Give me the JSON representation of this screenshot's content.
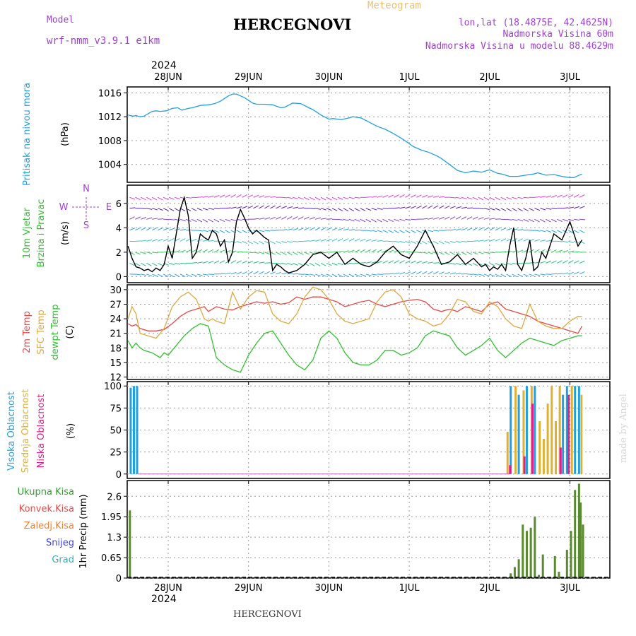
{
  "header": {
    "model_label": "Model",
    "model_name": "wrf-nmm_v3.9.1 e1km",
    "title": "HERCEGNOVI",
    "meteogram_label": "Meteogram",
    "lonlat": "lon,lat (18.4875E, 42.4625N)",
    "altitude": "Nadmorska Visina 60m",
    "model_altitude": "Nadmorska Visina u modelu 88.4629m",
    "top_year": "2024",
    "bottom_year": "2024",
    "footer": "HERCEGNOVI",
    "credit": "made by Angel",
    "colors": {
      "model": "#a040d0",
      "title": "#000000",
      "meteogram": "#f0c070"
    }
  },
  "dates": [
    "28JUN",
    "29JUN",
    "30JUN",
    "1JUL",
    "2JUL",
    "3JUL"
  ],
  "chart_data": [
    {
      "type": "line",
      "id": "pressure",
      "ylabel_lines": [
        "Pritisak na nivou mora",
        "(hPa)"
      ],
      "ylim": [
        1001,
        1017
      ],
      "yticks": [
        "1004",
        "1008",
        "1012",
        "1016"
      ],
      "ytick_values": [
        1004,
        1008,
        1012,
        1016
      ],
      "grid": true,
      "series": [
        {
          "color": "#20a0e0",
          "x": [
            0,
            0.06,
            0.1,
            0.15,
            0.2,
            0.3,
            0.35,
            0.4,
            0.48,
            0.55,
            0.62,
            0.67,
            0.75,
            0.8,
            0.9,
            1.0,
            1.08,
            1.15,
            1.25,
            1.3,
            1.35,
            1.45,
            1.55,
            1.6,
            1.7,
            1.8,
            1.9,
            1.95,
            2.05,
            2.15,
            2.25,
            2.3,
            2.4,
            2.5,
            2.55,
            2.65,
            2.75,
            2.8,
            2.9,
            3.0,
            3.1,
            3.2,
            3.3,
            3.4,
            3.5,
            3.55,
            3.65,
            3.75,
            3.85,
            3.9,
            4.0,
            4.1,
            4.2,
            4.3,
            4.4,
            4.5,
            4.6,
            4.65,
            4.75,
            4.85,
            4.95,
            5.05,
            5.1,
            5.2,
            5.3,
            5.4,
            5.5,
            5.55,
            5.6,
            5.65
          ],
          "values": [
            1012.3,
            1012.1,
            1012.2,
            1012.0,
            1012.1,
            1012.9,
            1013.0,
            1012.9,
            1013.0,
            1013.4,
            1013.5,
            1013.1,
            1013.4,
            1013.5,
            1013.9,
            1014.0,
            1014.2,
            1014.6,
            1015.5,
            1015.8,
            1015.8,
            1015.2,
            1014.3,
            1014.1,
            1014.1,
            1014.0,
            1013.5,
            1013.6,
            1014.3,
            1014.2,
            1013.5,
            1013.2,
            1012.3,
            1011.6,
            1011.7,
            1011.5,
            1011.8,
            1012.0,
            1011.8,
            1011.1,
            1010.4,
            1009.9,
            1009.2,
            1008.4,
            1007.5,
            1007.0,
            1006.4,
            1006.0,
            1005.4,
            1005.0,
            1004.0,
            1003.0,
            1002.6,
            1002.9,
            1002.7,
            1003.1,
            1002.5,
            1002.4,
            1002.0,
            1002.0,
            1002.2,
            1002.4,
            1002.6,
            1002.2,
            1002.3,
            1002.0,
            1001.8,
            1001.8,
            1002.1,
            1002.4
          ]
        }
      ]
    },
    {
      "type": "line",
      "id": "wind",
      "ylabel_lines": [
        "10m Vjetar",
        "Brzina i Pravac",
        "(m/s)"
      ],
      "compass": {
        "n": "N",
        "w": "W",
        "e": "E",
        "s": "S"
      },
      "ylim": [
        -0.5,
        7.5
      ],
      "yticks": [
        "0",
        "2",
        "4",
        "6"
      ],
      "ytick_values": [
        0,
        2,
        4,
        6
      ],
      "grid": true,
      "series": [
        {
          "name": "",
          "color": "#000000",
          "x": [
            0,
            0.05,
            0.1,
            0.15,
            0.2,
            0.25,
            0.3,
            0.35,
            0.4,
            0.45,
            0.5,
            0.55,
            0.6,
            0.65,
            0.7,
            0.75,
            0.8,
            0.85,
            0.9,
            0.95,
            1.0,
            1.05,
            1.1,
            1.15,
            1.2,
            1.25,
            1.3,
            1.35,
            1.4,
            1.45,
            1.5,
            1.55,
            1.6,
            1.65,
            1.7,
            1.75,
            1.8,
            1.85,
            1.9,
            1.95,
            2.0,
            2.1,
            2.2,
            2.3,
            2.4,
            2.5,
            2.6,
            2.7,
            2.8,
            2.9,
            3.0,
            3.1,
            3.2,
            3.3,
            3.4,
            3.5,
            3.6,
            3.7,
            3.8,
            3.9,
            4.0,
            4.1,
            4.2,
            4.3,
            4.4,
            4.45,
            4.5,
            4.55,
            4.6,
            4.65,
            4.7,
            4.75,
            4.8,
            4.85,
            4.9,
            4.95,
            5.0,
            5.05,
            5.1,
            5.15,
            5.2,
            5.3,
            5.4,
            5.5,
            5.6,
            5.65
          ],
          "values": [
            2.5,
            1.5,
            0.8,
            0.7,
            0.5,
            0.6,
            0.4,
            0.7,
            0.5,
            1.0,
            2.5,
            1.5,
            3.5,
            5.5,
            6.5,
            5.0,
            1.5,
            2.0,
            3.5,
            3.2,
            3.0,
            3.8,
            3.5,
            2.5,
            3.0,
            1.2,
            2.0,
            4.5,
            5.5,
            4.8,
            4.0,
            3.5,
            3.8,
            3.5,
            3.2,
            3.0,
            0.5,
            1.0,
            0.8,
            0.5,
            0.3,
            0.5,
            1.0,
            1.8,
            2.0,
            1.5,
            2.0,
            1.0,
            1.5,
            1.0,
            0.8,
            1.2,
            2.0,
            2.5,
            1.8,
            1.5,
            2.5,
            3.8,
            2.5,
            1.0,
            1.2,
            1.8,
            1.0,
            1.5,
            0.8,
            1.0,
            0.5,
            0.8,
            0.6,
            1.0,
            0.5,
            2.5,
            4.0,
            1.0,
            0.5,
            1.5,
            3.0,
            0.5,
            0.8,
            2.0,
            1.5,
            3.5,
            3.0,
            4.5,
            2.5,
            3.0
          ]
        }
      ]
    },
    {
      "type": "line",
      "id": "temperature",
      "ylabel_lines": [
        "2m Temp",
        "SFC Temp",
        "dewpt Temp",
        "(C)"
      ],
      "ylim": [
        11.5,
        31
      ],
      "yticks": [
        "12",
        "15",
        "18",
        "21",
        "24",
        "27",
        "30"
      ],
      "ytick_values": [
        12,
        15,
        18,
        21,
        24,
        27,
        30
      ],
      "grid": true,
      "series": [
        {
          "name": "2m Temp",
          "color": "#e84848",
          "x": [
            0,
            0.05,
            0.1,
            0.15,
            0.25,
            0.35,
            0.45,
            0.55,
            0.65,
            0.75,
            0.85,
            0.95,
            1.0,
            1.1,
            1.2,
            1.3,
            1.4,
            1.5,
            1.6,
            1.7,
            1.8,
            1.9,
            2.0,
            2.1,
            2.2,
            2.3,
            2.4,
            2.5,
            2.6,
            2.7,
            2.8,
            2.9,
            3.0,
            3.1,
            3.2,
            3.3,
            3.4,
            3.5,
            3.6,
            3.7,
            3.8,
            3.9,
            4.0,
            4.1,
            4.2,
            4.3,
            4.4,
            4.5,
            4.6,
            4.7,
            4.8,
            4.9,
            5.0,
            5.1,
            5.2,
            5.3,
            5.4,
            5.5,
            5.6,
            5.65
          ],
          "values": [
            23.0,
            22.5,
            22.8,
            22.0,
            21.5,
            21.5,
            21.8,
            23.0,
            24.5,
            25.5,
            26.0,
            26.5,
            25.5,
            26.5,
            26.0,
            25.8,
            26.5,
            27.0,
            27.5,
            27.2,
            27.5,
            27.0,
            27.3,
            28.5,
            28.0,
            28.5,
            28.5,
            28.0,
            27.5,
            26.5,
            27.0,
            27.5,
            27.8,
            27.0,
            26.5,
            27.0,
            27.5,
            27.8,
            28.0,
            27.5,
            26.0,
            25.5,
            26.0,
            25.5,
            26.5,
            26.0,
            25.5,
            27.0,
            27.5,
            26.0,
            25.5,
            25.0,
            24.5,
            23.5,
            23.0,
            22.5,
            22.0,
            21.5,
            21.0,
            22.5
          ]
        },
        {
          "name": "SFC Temp",
          "color": "#e0a840",
          "x": [
            0,
            0.05,
            0.1,
            0.15,
            0.25,
            0.35,
            0.45,
            0.55,
            0.65,
            0.75,
            0.85,
            0.95,
            1.0,
            1.05,
            1.1,
            1.2,
            1.3,
            1.4,
            1.5,
            1.6,
            1.7,
            1.8,
            1.9,
            2.0,
            2.1,
            2.2,
            2.3,
            2.4,
            2.5,
            2.6,
            2.7,
            2.8,
            2.9,
            3.0,
            3.1,
            3.2,
            3.3,
            3.4,
            3.5,
            3.6,
            3.7,
            3.8,
            3.9,
            4.0,
            4.1,
            4.2,
            4.3,
            4.4,
            4.5,
            4.6,
            4.7,
            4.8,
            4.9,
            5.0,
            5.1,
            5.2,
            5.3,
            5.4,
            5.5,
            5.6,
            5.65
          ],
          "values": [
            24.0,
            26.5,
            25.0,
            21.0,
            20.5,
            20.0,
            22.0,
            26.5,
            28.5,
            29.5,
            28.0,
            24.0,
            23.5,
            24.0,
            23.5,
            23.0,
            29.5,
            26.0,
            28.5,
            29.8,
            29.5,
            25.0,
            23.5,
            23.0,
            25.0,
            28.5,
            30.5,
            30.0,
            28.0,
            25.0,
            23.5,
            23.0,
            23.5,
            24.0,
            27.5,
            29.5,
            30.0,
            28.5,
            25.0,
            24.0,
            23.5,
            22.5,
            23.0,
            25.0,
            28.0,
            27.5,
            25.5,
            25.0,
            27.5,
            26.5,
            24.0,
            22.5,
            22.0,
            27.0,
            23.5,
            22.5,
            22.0,
            22.0,
            23.5,
            24.5,
            24.5
          ]
        },
        {
          "name": "dewpt Temp",
          "color": "#30c030",
          "x": [
            0,
            0.05,
            0.1,
            0.15,
            0.2,
            0.3,
            0.4,
            0.45,
            0.5,
            0.6,
            0.7,
            0.8,
            0.9,
            1.0,
            1.1,
            1.2,
            1.3,
            1.4,
            1.5,
            1.6,
            1.7,
            1.8,
            1.9,
            2.0,
            2.1,
            2.2,
            2.3,
            2.4,
            2.5,
            2.6,
            2.7,
            2.8,
            2.9,
            3.0,
            3.1,
            3.2,
            3.3,
            3.4,
            3.5,
            3.6,
            3.7,
            3.8,
            3.9,
            4.0,
            4.1,
            4.2,
            4.3,
            4.4,
            4.5,
            4.6,
            4.7,
            4.8,
            4.9,
            5.0,
            5.1,
            5.2,
            5.3,
            5.4,
            5.5,
            5.6,
            5.65
          ],
          "values": [
            19.5,
            18.0,
            19.0,
            18.0,
            17.5,
            17.0,
            16.0,
            17.0,
            16.5,
            18.5,
            20.5,
            22.0,
            23.0,
            22.5,
            16.0,
            14.5,
            13.5,
            13.0,
            16.5,
            19.0,
            21.0,
            21.5,
            19.0,
            16.5,
            14.5,
            13.5,
            15.5,
            20.0,
            21.5,
            20.0,
            17.0,
            15.0,
            14.5,
            14.5,
            15.5,
            17.5,
            17.5,
            16.5,
            17.0,
            18.0,
            20.5,
            21.5,
            21.0,
            20.5,
            18.0,
            16.5,
            17.5,
            18.5,
            20.0,
            17.5,
            16.0,
            17.5,
            19.0,
            20.0,
            19.5,
            19.0,
            18.5,
            19.5,
            20.0,
            20.5,
            20.5
          ]
        }
      ]
    },
    {
      "type": "bar",
      "id": "clouds",
      "ylabel_lines": [
        "Visoka Oblacnost",
        "Srednja Oblacnost",
        "Niska Oblacnost",
        "(%)"
      ],
      "ylim": [
        -5,
        105
      ],
      "yticks": [
        "0",
        "25",
        "50",
        "75",
        "100"
      ],
      "ytick_values": [
        0,
        25,
        50,
        75,
        100
      ],
      "grid": true,
      "series": [
        {
          "name": "Visoka Oblacnost",
          "color": "#20a0e0",
          "x": [
            0.02,
            0.06,
            0.1,
            4.75,
            4.85,
            4.95,
            5.05,
            5.4,
            5.45,
            5.55,
            5.6
          ],
          "values": [
            98,
            100,
            100,
            100,
            90,
            100,
            100,
            90,
            100,
            100,
            100
          ]
        },
        {
          "name": "Srednja Oblacnost",
          "color": "#e0b030",
          "x": [
            4.7,
            4.8,
            4.9,
            5.0,
            5.1,
            5.15,
            5.2,
            5.25,
            5.3,
            5.35,
            5.5,
            5.62
          ],
          "values": [
            48,
            100,
            95,
            100,
            60,
            40,
            80,
            100,
            60,
            100,
            100,
            90
          ]
        },
        {
          "name": "Niska Oblacnost",
          "color": "#e0208a",
          "x": [
            4.72,
            4.9,
            5.0,
            5.35,
            5.45
          ],
          "values": [
            10,
            20,
            80,
            30,
            90
          ]
        }
      ]
    },
    {
      "type": "bar",
      "id": "precip",
      "ylabel_lines": [
        "1hr Precip (mm)"
      ],
      "legend": [
        "Ukupna Kisa",
        "Konvek.Kisa",
        "Zaledj.Kisa",
        "Snijeg",
        "Grad"
      ],
      "legend_colors": [
        "#30a030",
        "#e84848",
        "#f08030",
        "#4040e0",
        "#30b0b0"
      ],
      "ylim": [
        0,
        3.1
      ],
      "yticks": [
        "0",
        "0.65",
        "1.3",
        "1.95",
        "2.6"
      ],
      "ytick_values": [
        0,
        0.65,
        1.3,
        1.95,
        2.6
      ],
      "grid": true,
      "series": [
        {
          "name": "Ukupna Kisa",
          "color": "#5a8a30",
          "x": [
            0.01,
            4.75,
            4.8,
            4.85,
            4.9,
            4.95,
            5.0,
            5.05,
            5.1,
            5.15,
            5.3,
            5.35,
            5.45,
            5.5,
            5.55,
            5.6,
            5.62,
            5.65
          ],
          "values": [
            2.15,
            0.15,
            0.35,
            0.6,
            1.7,
            1.5,
            1.6,
            1.95,
            0.1,
            0.75,
            0.7,
            0.2,
            0.9,
            1.5,
            2.8,
            3.0,
            2.4,
            1.7
          ]
        }
      ]
    }
  ]
}
